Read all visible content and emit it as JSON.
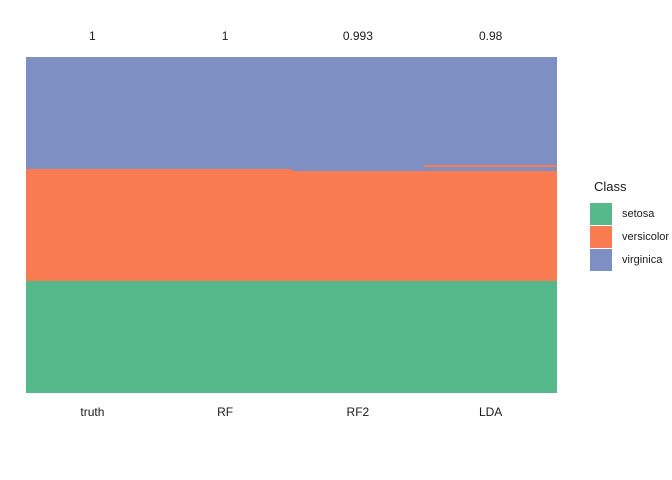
{
  "chart_data": {
    "type": "bar",
    "subtype": "stacked-class-prediction-columns",
    "title": "",
    "xlabel": "",
    "ylabel": "",
    "grid": false,
    "background": "#ffffff",
    "total_per_column": 150,
    "top_annotation": "accuracy per column",
    "columns": [
      {
        "label": "truth",
        "accuracy": "1",
        "segments": [
          {
            "class": "virginica",
            "n": 50
          },
          {
            "class": "versicolor",
            "n": 50
          },
          {
            "class": "setosa",
            "n": 50
          }
        ]
      },
      {
        "label": "RF",
        "accuracy": "1",
        "segments": [
          {
            "class": "virginica",
            "n": 50
          },
          {
            "class": "versicolor",
            "n": 50
          },
          {
            "class": "setosa",
            "n": 50
          }
        ]
      },
      {
        "label": "RF2",
        "accuracy": "0.993",
        "segments": [
          {
            "class": "virginica",
            "n": 51
          },
          {
            "class": "versicolor",
            "n": 49
          },
          {
            "class": "setosa",
            "n": 50
          }
        ]
      },
      {
        "label": "LDA",
        "accuracy": "0.98",
        "segments": [
          {
            "class": "virginica",
            "n": 48
          },
          {
            "class": "versicolor",
            "n": 1
          },
          {
            "class": "virginica",
            "n": 2
          },
          {
            "class": "versicolor",
            "n": 49
          },
          {
            "class": "setosa",
            "n": 50
          }
        ]
      }
    ],
    "legend": {
      "title": "Class",
      "position": "right",
      "entries": [
        {
          "label": "setosa",
          "color": "#55B98C"
        },
        {
          "label": "versicolor",
          "color": "#F87B51"
        },
        {
          "label": "virginica",
          "color": "#7D8FC3"
        }
      ]
    }
  }
}
